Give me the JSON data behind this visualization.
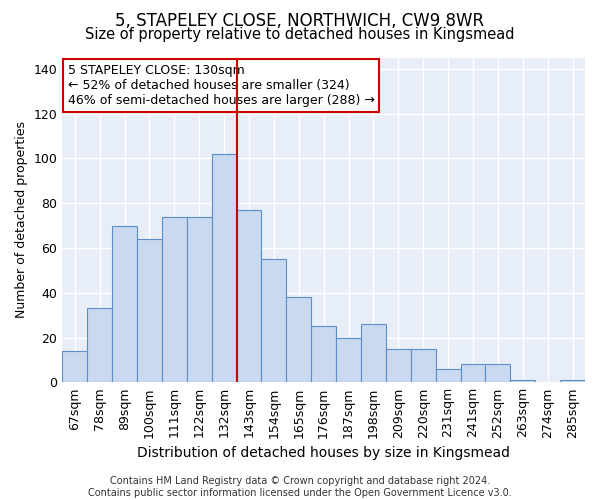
{
  "title": "5, STAPELEY CLOSE, NORTHWICH, CW9 8WR",
  "subtitle": "Size of property relative to detached houses in Kingsmead",
  "xlabel": "Distribution of detached houses by size in Kingsmead",
  "ylabel": "Number of detached properties",
  "categories": [
    "67sqm",
    "78sqm",
    "89sqm",
    "100sqm",
    "111sqm",
    "122sqm",
    "132sqm",
    "143sqm",
    "154sqm",
    "165sqm",
    "176sqm",
    "187sqm",
    "198sqm",
    "209sqm",
    "220sqm",
    "231sqm",
    "241sqm",
    "252sqm",
    "263sqm",
    "274sqm",
    "285sqm"
  ],
  "values": [
    14,
    33,
    70,
    64,
    74,
    74,
    102,
    77,
    55,
    38,
    25,
    20,
    26,
    15,
    15,
    6,
    8,
    8,
    1,
    0,
    1
  ],
  "bar_color": "#c9d9f0",
  "bar_edge_color": "#5b8fc9",
  "vline_index": 6,
  "vline_color": "#cc0000",
  "annotation_text": "5 STAPELEY CLOSE: 130sqm\n← 52% of detached houses are smaller (324)\n46% of semi-detached houses are larger (288) →",
  "annotation_box_facecolor": "#ffffff",
  "annotation_box_edgecolor": "#cc0000",
  "footer": "Contains HM Land Registry data © Crown copyright and database right 2024.\nContains public sector information licensed under the Open Government Licence v3.0.",
  "ylim": [
    0,
    145
  ],
  "yticks": [
    0,
    20,
    40,
    60,
    80,
    100,
    120,
    140
  ],
  "fig_bg_color": "#ffffff",
  "plot_bg_color": "#e8eef8",
  "grid_color": "#ffffff",
  "title_fontsize": 12,
  "subtitle_fontsize": 10.5,
  "tick_fontsize": 9,
  "ylabel_fontsize": 9,
  "xlabel_fontsize": 10,
  "footer_fontsize": 7,
  "annot_fontsize": 9
}
